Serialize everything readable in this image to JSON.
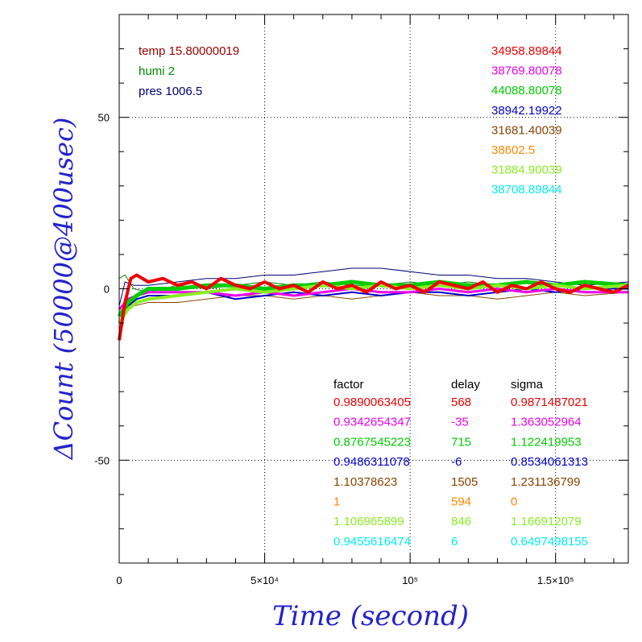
{
  "chart_data": {
    "type": "line",
    "xlabel": "Time (second)",
    "ylabel": "ΔCount (50000@400usec)",
    "xlim": [
      0,
      175000
    ],
    "ylim": [
      -80,
      80
    ],
    "grid": true,
    "x_ticks": [
      {
        "value": 0,
        "label": "0"
      },
      {
        "value": 50000,
        "label": "5×10⁴"
      },
      {
        "value": 100000,
        "label": "10⁵"
      },
      {
        "value": 150000,
        "label": "1.5×10⁵"
      }
    ],
    "y_ticks": [
      {
        "value": 50,
        "label": "50"
      },
      {
        "value": 0,
        "label": "0"
      },
      {
        "value": -50,
        "label": "-50"
      }
    ],
    "environment": [
      {
        "text": "temp 15.80000019",
        "color": "#990000"
      },
      {
        "text": "humi 2",
        "color": "#008800"
      },
      {
        "text": "pres 1006.5",
        "color": "#000077"
      }
    ],
    "counts": [
      {
        "text": "34958.89844",
        "color": "#ee0000"
      },
      {
        "text": "38769.80078",
        "color": "#ee00ee"
      },
      {
        "text": "44088.80078",
        "color": "#00cc00"
      },
      {
        "text": "38942.19922",
        "color": "#0000cc"
      },
      {
        "text": "31681.40039",
        "color": "#884400"
      },
      {
        "text": "38602.5",
        "color": "#ff8800"
      },
      {
        "text": "31884.90039",
        "color": "#88ee22"
      },
      {
        "text": "38708.89844",
        "color": "#00eeee"
      }
    ],
    "table": {
      "headers": [
        "factor",
        "delay",
        "sigma"
      ],
      "rows": [
        {
          "factor": "0.9890063405",
          "delay": "568",
          "sigma": "0.9871487021",
          "color": "#ee0000"
        },
        {
          "factor": "0.9342654347",
          "delay": "-35",
          "sigma": "1.363052964",
          "color": "#ee00ee"
        },
        {
          "factor": "0.8767545223",
          "delay": "715",
          "sigma": "1.122419953",
          "color": "#00cc00"
        },
        {
          "factor": "0.9486311078",
          "delay": "-6",
          "sigma": "0.8534061313",
          "color": "#0000cc"
        },
        {
          "factor": "1.10378623",
          "delay": "1505",
          "sigma": "1.231136799",
          "color": "#884400"
        },
        {
          "factor": "1",
          "delay": "594",
          "sigma": "0",
          "color": "#ff8800"
        },
        {
          "factor": "1.106965899",
          "delay": "846",
          "sigma": "1.166912079",
          "color": "#88ee22"
        },
        {
          "factor": "0.9455616474",
          "delay": "6",
          "sigma": "0.6497498155",
          "color": "#00eeee"
        }
      ]
    },
    "series": [
      {
        "color": "#000077",
        "width": 1,
        "x": [
          0,
          2000,
          5000,
          10000,
          20000,
          30000,
          40000,
          50000,
          60000,
          70000,
          80000,
          90000,
          100000,
          110000,
          120000,
          130000,
          140000,
          150000,
          160000,
          175000
        ],
        "y": [
          -5,
          2,
          1,
          1,
          2,
          3,
          3,
          4,
          4,
          5,
          6,
          6,
          5,
          4,
          4,
          3,
          3,
          2,
          1,
          2
        ]
      },
      {
        "color": "#884400",
        "width": 1,
        "x": [
          0,
          2000,
          5000,
          10000,
          20000,
          30000,
          40000,
          50000,
          60000,
          70000,
          80000,
          90000,
          100000,
          110000,
          120000,
          130000,
          140000,
          150000,
          160000,
          175000
        ],
        "y": [
          -6,
          -4,
          -5,
          -4,
          -4,
          -3,
          -2,
          -2,
          -3,
          -2,
          -3,
          -2,
          -1,
          -2,
          -2,
          -3,
          -2,
          -1,
          -2,
          -1
        ]
      },
      {
        "color": "#008800",
        "width": 1,
        "x": [
          0,
          2000,
          5000,
          10000,
          20000,
          30000,
          40000,
          50000,
          60000,
          70000,
          80000,
          90000,
          100000,
          110000,
          120000,
          130000,
          140000,
          150000,
          160000,
          175000
        ],
        "y": [
          3,
          4,
          0,
          -1,
          1,
          0,
          1,
          2,
          1,
          2,
          1,
          1,
          2,
          1,
          2,
          1,
          0,
          1,
          2,
          1
        ]
      },
      {
        "color": "#0000cc",
        "width": 2,
        "x": [
          0,
          3000,
          6000,
          10000,
          20000,
          30000,
          40000,
          50000,
          60000,
          70000,
          80000,
          90000,
          100000,
          110000,
          120000,
          130000,
          140000,
          150000,
          160000,
          175000
        ],
        "y": [
          -8,
          -5,
          -3,
          -2,
          -2,
          -1,
          -3,
          -2,
          -1,
          -2,
          -1,
          -2,
          -1,
          -1,
          -2,
          -1,
          0,
          -1,
          0,
          0
        ]
      },
      {
        "color": "#ee00ee",
        "width": 3,
        "x": [
          0,
          3000,
          6000,
          10000,
          20000,
          30000,
          40000,
          50000,
          60000,
          70000,
          80000,
          90000,
          100000,
          110000,
          120000,
          130000,
          140000,
          150000,
          160000,
          175000
        ],
        "y": [
          -6,
          -3,
          -2,
          -1,
          -1,
          -1,
          -2,
          -1,
          -2,
          -1,
          0,
          -1,
          -1,
          0,
          -1,
          0,
          -1,
          0,
          -1,
          -1
        ]
      },
      {
        "color": "#00cc00",
        "width": 5,
        "x": [
          0,
          3000,
          6000,
          10000,
          20000,
          30000,
          40000,
          50000,
          60000,
          70000,
          80000,
          90000,
          100000,
          110000,
          120000,
          130000,
          140000,
          150000,
          160000,
          175000
        ],
        "y": [
          -8,
          -4,
          -2,
          0,
          0,
          1,
          1,
          0,
          1,
          1,
          2,
          1,
          1,
          2,
          1,
          1,
          2,
          1,
          2,
          1
        ]
      },
      {
        "color": "#88ee22",
        "width": 4,
        "x": [
          0,
          3000,
          6000,
          10000,
          20000,
          30000,
          40000,
          50000,
          60000,
          70000,
          80000,
          90000,
          100000,
          110000,
          120000,
          130000,
          140000,
          150000,
          160000,
          175000
        ],
        "y": [
          -10,
          -6,
          -4,
          -3,
          -2,
          -1,
          0,
          -1,
          0,
          1,
          0,
          1,
          0,
          1,
          0,
          1,
          0,
          1,
          0,
          1
        ]
      },
      {
        "color": "#ee0000",
        "width": 4,
        "x": [
          0,
          2000,
          4000,
          6000,
          10000,
          15000,
          20000,
          25000,
          30000,
          35000,
          40000,
          45000,
          50000,
          55000,
          60000,
          65000,
          70000,
          75000,
          80000,
          85000,
          90000,
          95000,
          100000,
          105000,
          110000,
          115000,
          120000,
          125000,
          130000,
          135000,
          140000,
          145000,
          150000,
          155000,
          160000,
          165000,
          170000,
          175000
        ],
        "y": [
          -15,
          -4,
          3,
          4,
          2,
          3,
          1,
          2,
          0,
          3,
          1,
          0,
          2,
          0,
          1,
          -1,
          2,
          0,
          1,
          -1,
          2,
          0,
          1,
          -1,
          2,
          1,
          0,
          2,
          -1,
          1,
          0,
          2,
          0,
          -1,
          1,
          0,
          -1,
          1
        ]
      }
    ]
  }
}
